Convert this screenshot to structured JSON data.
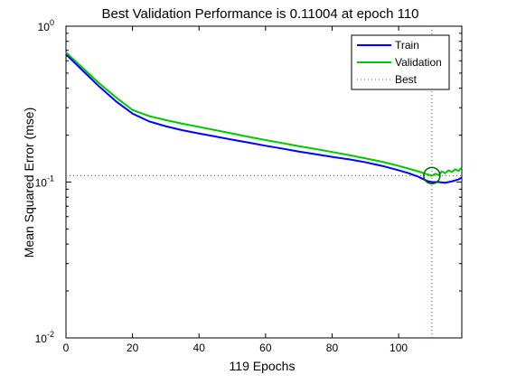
{
  "chart_data": {
    "type": "line",
    "title": "Best Validation Performance is 0.11004 at epoch 110",
    "xlabel": "119 Epochs",
    "ylabel": "Mean Squared Error  (mse)",
    "xlim": [
      0,
      119
    ],
    "ylim": [
      0.01,
      1
    ],
    "yscale": "log",
    "xticks": [
      0,
      20,
      40,
      60,
      80,
      100
    ],
    "xtick_labels": [
      "0",
      "20",
      "40",
      "60",
      "80",
      "100"
    ],
    "yticks": [
      {
        "value": 1,
        "base": "10",
        "exp": "0"
      },
      {
        "value": 0.1,
        "base": "10",
        "exp": "-1"
      },
      {
        "value": 0.01,
        "base": "10",
        "exp": "-2"
      }
    ],
    "legend_position": "top-right",
    "best": {
      "epoch": 110,
      "value": 0.11004
    },
    "series": [
      {
        "name": "Train",
        "color": "#0000ff",
        "x": [
          0,
          2,
          5,
          10,
          15,
          20,
          25,
          30,
          35,
          40,
          45,
          50,
          55,
          60,
          65,
          70,
          75,
          80,
          85,
          90,
          95,
          100,
          103,
          106,
          108,
          109,
          110,
          112,
          114,
          116,
          118,
          119
        ],
        "y": [
          0.66,
          0.6,
          0.52,
          0.41,
          0.33,
          0.275,
          0.245,
          0.228,
          0.215,
          0.205,
          0.196,
          0.187,
          0.179,
          0.171,
          0.164,
          0.157,
          0.151,
          0.145,
          0.14,
          0.134,
          0.127,
          0.119,
          0.114,
          0.108,
          0.103,
          0.101,
          0.1,
          0.1,
          0.099,
          0.101,
          0.104,
          0.107
        ]
      },
      {
        "name": "Validation",
        "color": "#00c800",
        "x": [
          0,
          2,
          5,
          10,
          15,
          20,
          25,
          30,
          35,
          40,
          45,
          50,
          55,
          60,
          65,
          70,
          75,
          80,
          85,
          90,
          95,
          100,
          103,
          106,
          108,
          110,
          111,
          112,
          113,
          114,
          115,
          116,
          117,
          118,
          119
        ],
        "y": [
          0.68,
          0.62,
          0.54,
          0.43,
          0.35,
          0.29,
          0.265,
          0.25,
          0.237,
          0.226,
          0.215,
          0.205,
          0.195,
          0.186,
          0.178,
          0.17,
          0.163,
          0.156,
          0.149,
          0.142,
          0.135,
          0.127,
          0.122,
          0.117,
          0.113,
          0.11,
          0.113,
          0.111,
          0.117,
          0.114,
          0.119,
          0.116,
          0.121,
          0.118,
          0.124
        ]
      }
    ],
    "best_legend_name": "Best"
  }
}
